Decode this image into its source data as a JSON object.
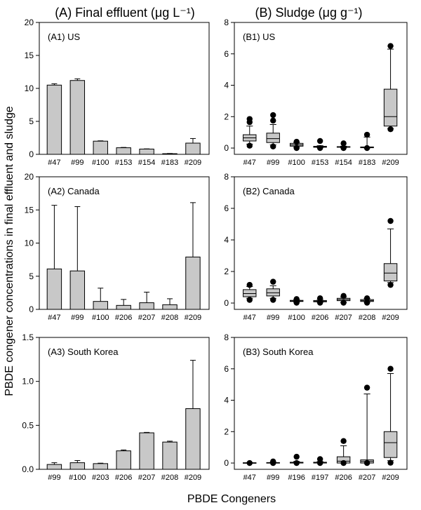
{
  "figure": {
    "column_titles": [
      "(A) Final effluent (μg L⁻¹)",
      "(B) Sludge (μg g⁻¹)"
    ],
    "ylabel": "PBDE congener concentrations in final effluent and sludge",
    "xlabel": "PBDE Congeners"
  },
  "chart_data": [
    {
      "id": "A1",
      "type": "bar",
      "title": "(A1) US",
      "categories": [
        "#47",
        "#99",
        "#100",
        "#153",
        "#154",
        "#183",
        "#209"
      ],
      "values": [
        10.5,
        11.2,
        2.0,
        1.0,
        0.8,
        0.1,
        1.7
      ],
      "errors": [
        0.2,
        0.25,
        0.05,
        0.05,
        0.03,
        0.03,
        0.7
      ],
      "ylim": [
        0,
        20
      ],
      "yticks": [
        0,
        5,
        10,
        15,
        20
      ],
      "ytick_labels": [
        "0",
        "5",
        "10",
        "15",
        "20"
      ]
    },
    {
      "id": "A2",
      "type": "bar",
      "title": "(A2) Canada",
      "categories": [
        "#47",
        "#99",
        "#100",
        "#206",
        "#207",
        "#208",
        "#209"
      ],
      "values": [
        6.1,
        5.8,
        1.2,
        0.6,
        1.0,
        0.7,
        7.9
      ],
      "errors": [
        9.6,
        9.7,
        2.0,
        0.9,
        1.6,
        0.9,
        8.2
      ],
      "ylim": [
        0,
        20
      ],
      "yticks": [
        0,
        5,
        10,
        15,
        20
      ],
      "ytick_labels": [
        "0",
        "5",
        "10",
        "15",
        "20"
      ]
    },
    {
      "id": "A3",
      "type": "bar",
      "title": "(A3) South Korea",
      "categories": [
        "#99",
        "#100",
        "#203",
        "#206",
        "#207",
        "#208",
        "#209"
      ],
      "values": [
        0.055,
        0.075,
        0.065,
        0.21,
        0.415,
        0.31,
        0.69
      ],
      "errors": [
        0.02,
        0.025,
        0.005,
        0.01,
        0.005,
        0.01,
        0.55
      ],
      "ylim": [
        0,
        1.5
      ],
      "yticks": [
        0,
        0.5,
        1.0,
        1.5
      ],
      "ytick_labels": [
        "0.0",
        "0.5",
        "1.0",
        "1.5"
      ]
    },
    {
      "id": "B1",
      "type": "box",
      "title": "(B1) US",
      "categories": [
        "#47",
        "#99",
        "#100",
        "#153",
        "#154",
        "#183",
        "#209"
      ],
      "boxes": [
        {
          "whislo": 0.25,
          "q1": 0.45,
          "med": 0.65,
          "q3": 0.85,
          "whishi": 1.4,
          "fliers": [
            0.15,
            1.65,
            1.85
          ]
        },
        {
          "whislo": 0.2,
          "q1": 0.35,
          "med": 0.6,
          "q3": 0.95,
          "whishi": 1.5,
          "fliers": [
            0.1,
            1.75,
            2.1
          ]
        },
        {
          "whislo": 0.05,
          "q1": 0.12,
          "med": 0.2,
          "q3": 0.3,
          "whishi": 0.35,
          "fliers": [
            0.0,
            0.4
          ]
        },
        {
          "whislo": 0.02,
          "q1": 0.05,
          "med": 0.08,
          "q3": 0.11,
          "whishi": 0.15,
          "fliers": [
            0.0,
            0.45
          ]
        },
        {
          "whislo": 0.02,
          "q1": 0.05,
          "med": 0.07,
          "q3": 0.09,
          "whishi": 0.12,
          "fliers": [
            0.0,
            0.3
          ]
        },
        {
          "whislo": 0.0,
          "q1": 0.02,
          "med": 0.04,
          "q3": 0.07,
          "whishi": 0.7,
          "fliers": [
            0.0,
            0.85
          ]
        },
        {
          "whislo": 1.25,
          "q1": 1.4,
          "med": 2.0,
          "q3": 3.75,
          "whishi": 6.3,
          "fliers": [
            1.2,
            6.5
          ]
        }
      ],
      "ylim": [
        -0.4,
        8
      ],
      "yticks": [
        0,
        2,
        4,
        6,
        8
      ],
      "ytick_labels": [
        "0",
        "2",
        "4",
        "6",
        "8"
      ]
    },
    {
      "id": "B2",
      "type": "box",
      "title": "(B2) Canada",
      "categories": [
        "#47",
        "#99",
        "#100",
        "#206",
        "#207",
        "#208",
        "#209"
      ],
      "boxes": [
        {
          "whislo": 0.3,
          "q1": 0.4,
          "med": 0.6,
          "q3": 0.85,
          "whishi": 1.05,
          "fliers": [
            0.2,
            1.15
          ]
        },
        {
          "whislo": 0.3,
          "q1": 0.45,
          "med": 0.65,
          "q3": 0.9,
          "whishi": 1.1,
          "fliers": [
            0.2,
            1.35
          ]
        },
        {
          "whislo": 0.05,
          "q1": 0.1,
          "med": 0.13,
          "q3": 0.17,
          "whishi": 0.22,
          "fliers": [
            0.02,
            0.25
          ]
        },
        {
          "whislo": 0.05,
          "q1": 0.08,
          "med": 0.12,
          "q3": 0.16,
          "whishi": 0.22,
          "fliers": [
            0.02,
            0.3
          ]
        },
        {
          "whislo": 0.05,
          "q1": 0.15,
          "med": 0.22,
          "q3": 0.3,
          "whishi": 0.38,
          "fliers": [
            0.02,
            0.45
          ]
        },
        {
          "whislo": 0.05,
          "q1": 0.1,
          "med": 0.15,
          "q3": 0.22,
          "whishi": 0.28,
          "fliers": [
            0.02,
            0.3
          ]
        },
        {
          "whislo": 1.3,
          "q1": 1.4,
          "med": 1.9,
          "q3": 2.5,
          "whishi": 4.7,
          "fliers": [
            1.15,
            5.2
          ]
        }
      ],
      "ylim": [
        -0.4,
        8
      ],
      "yticks": [
        0,
        2,
        4,
        6,
        8
      ],
      "ytick_labels": [
        "0",
        "2",
        "4",
        "6",
        "8"
      ]
    },
    {
      "id": "B3",
      "type": "box",
      "title": "(B3) South Korea",
      "categories": [
        "#47",
        "#99",
        "#196",
        "#197",
        "#206",
        "#207",
        "#209"
      ],
      "boxes": [
        {
          "whislo": 0.0,
          "q1": 0.0,
          "med": 0.0,
          "q3": 0.02,
          "whishi": 0.03,
          "fliers": [
            0.0
          ]
        },
        {
          "whislo": 0.0,
          "q1": 0.0,
          "med": 0.02,
          "q3": 0.03,
          "whishi": 0.05,
          "fliers": [
            0.0,
            0.1
          ]
        },
        {
          "whislo": 0.0,
          "q1": 0.0,
          "med": 0.02,
          "q3": 0.05,
          "whishi": 0.1,
          "fliers": [
            0.0,
            0.4
          ]
        },
        {
          "whislo": 0.0,
          "q1": 0.0,
          "med": 0.02,
          "q3": 0.05,
          "whishi": 0.1,
          "fliers": [
            0.0,
            0.25
          ]
        },
        {
          "whislo": 0.0,
          "q1": 0.0,
          "med": 0.12,
          "q3": 0.4,
          "whishi": 1.1,
          "fliers": [
            0.0,
            1.4
          ]
        },
        {
          "whislo": 0.0,
          "q1": 0.0,
          "med": 0.1,
          "q3": 0.2,
          "whishi": 4.4,
          "fliers": [
            0.0,
            4.8
          ]
        },
        {
          "whislo": 0.15,
          "q1": 0.35,
          "med": 1.3,
          "q3": 2.0,
          "whishi": 5.7,
          "fliers": [
            0.02,
            6.0
          ]
        }
      ],
      "ylim": [
        -0.4,
        8
      ],
      "yticks": [
        0,
        2,
        4,
        6,
        8
      ],
      "ytick_labels": [
        "0",
        "2",
        "4",
        "6",
        "8"
      ]
    }
  ]
}
